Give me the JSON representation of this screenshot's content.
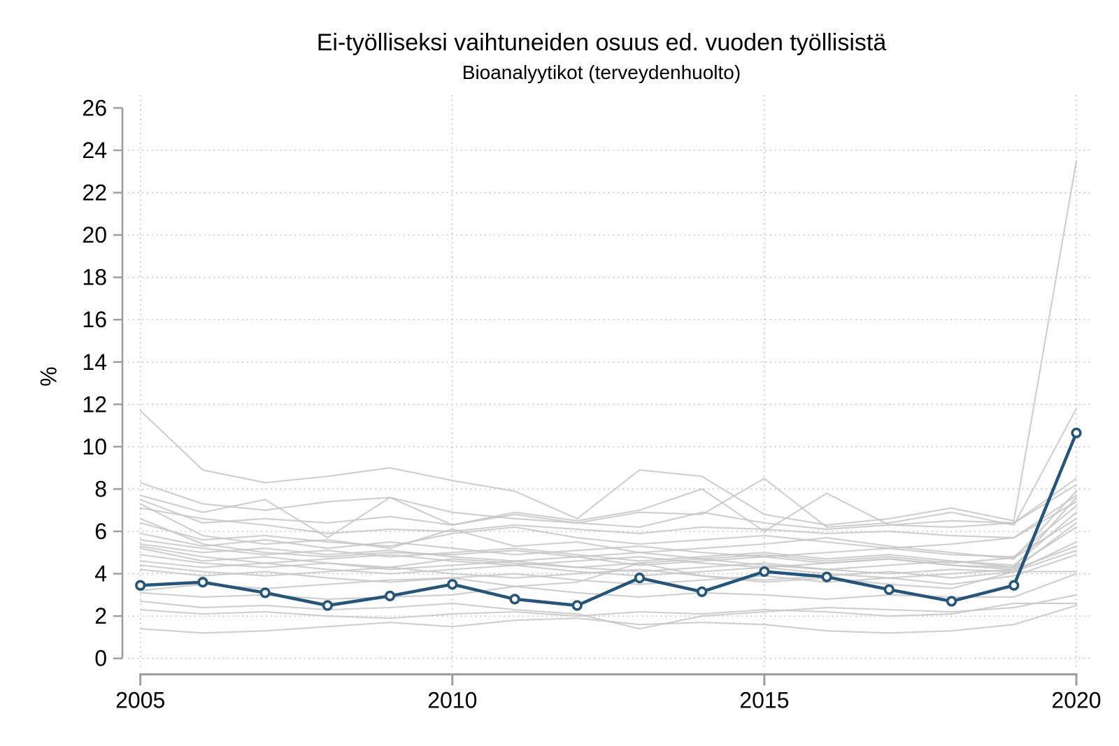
{
  "header": {
    "title": "Ei-työlliseksi vaihtuneiden osuus ed. vuoden työllisistä",
    "subtitle": "Bioanalyytikot (terveydenhuolto)"
  },
  "chart_data": {
    "type": "line",
    "title": "Ei-työlliseksi vaihtuneiden osuus ed. vuoden työllisistä",
    "subtitle": "Bioanalyytikot (terveydenhuolto)",
    "ylabel": "%",
    "xlabel": "",
    "x": [
      2005,
      2006,
      2007,
      2008,
      2009,
      2010,
      2011,
      2012,
      2013,
      2014,
      2015,
      2016,
      2017,
      2018,
      2019,
      2020
    ],
    "x_ticks": [
      2005,
      2010,
      2015,
      2020
    ],
    "y_ticks": [
      0,
      2,
      4,
      6,
      8,
      10,
      12,
      14,
      16,
      18,
      20,
      22,
      24,
      26
    ],
    "y_gridlines": [
      0,
      2,
      4,
      6,
      8,
      10,
      12,
      14,
      16,
      18,
      20,
      22,
      24
    ],
    "ylim": [
      0,
      26
    ],
    "grid": "dotted, at labeled ticks, both directions",
    "legend": "none",
    "highlight": {
      "label": "Bioanalyytikot (terveydenhuolto)",
      "color": "#25567a",
      "marker": "hollow-circle",
      "values": [
        3.45,
        3.6,
        3.1,
        2.5,
        2.95,
        3.5,
        2.8,
        2.5,
        3.8,
        3.15,
        4.1,
        3.85,
        3.25,
        2.7,
        3.45,
        10.65
      ]
    },
    "background": {
      "color": "#c4c4c4",
      "description": "other occupations, unlabeled gray lines",
      "series": [
        [
          11.7,
          8.9,
          8.3,
          8.6,
          9.0,
          8.4,
          7.9,
          6.6,
          8.9,
          8.6,
          6.8,
          6.3,
          6.6,
          7.1,
          6.5,
          23.5
        ],
        [
          8.3,
          7.3,
          7.0,
          7.4,
          7.6,
          6.9,
          6.6,
          6.4,
          6.9,
          6.8,
          8.5,
          6.2,
          6.4,
          6.9,
          6.3,
          11.8
        ],
        [
          7.7,
          6.9,
          7.5,
          5.7,
          7.6,
          6.3,
          6.9,
          6.5,
          7.0,
          8.0,
          6.0,
          7.8,
          6.3,
          6.5,
          6.4,
          8.5
        ],
        [
          7.5,
          6.4,
          6.6,
          6.4,
          6.7,
          6.3,
          6.8,
          6.4,
          6.2,
          6.9,
          6.4,
          6.1,
          6.3,
          6.2,
          6.4,
          8.2
        ],
        [
          7.3,
          5.8,
          5.4,
          5.6,
          5.2,
          6.1,
          5.3,
          5.5,
          5.0,
          5.2,
          5.4,
          5.7,
          5.3,
          5.0,
          4.7,
          7.9
        ],
        [
          7.1,
          6.6,
          6.3,
          5.9,
          6.1,
          6.0,
          6.3,
          6.1,
          5.9,
          6.2,
          6.1,
          5.9,
          6.0,
          5.8,
          5.7,
          7.7
        ],
        [
          6.6,
          5.4,
          5.0,
          4.8,
          5.0,
          4.9,
          5.1,
          4.8,
          4.4,
          4.6,
          4.8,
          4.5,
          4.7,
          4.4,
          4.3,
          7.6
        ],
        [
          6.4,
          5.6,
          5.8,
          5.5,
          5.3,
          5.9,
          6.2,
          5.7,
          5.4,
          5.6,
          5.8,
          5.5,
          5.2,
          5.4,
          5.7,
          7.4
        ],
        [
          5.9,
          5.3,
          5.6,
          5.2,
          5.5,
          5.2,
          4.9,
          5.1,
          5.3,
          5.0,
          4.8,
          5.0,
          5.2,
          4.9,
          4.8,
          7.2
        ],
        [
          5.6,
          5.2,
          4.9,
          5.1,
          4.8,
          5.0,
          5.2,
          4.9,
          4.6,
          4.8,
          5.0,
          4.7,
          4.9,
          4.6,
          4.4,
          6.9
        ],
        [
          5.4,
          5.0,
          5.2,
          4.9,
          5.1,
          4.8,
          4.6,
          4.8,
          5.0,
          4.7,
          4.9,
          4.6,
          4.8,
          4.5,
          4.75,
          6.6
        ],
        [
          5.3,
          4.8,
          4.5,
          4.7,
          4.9,
          4.6,
          4.4,
          4.6,
          4.8,
          4.5,
          4.3,
          4.5,
          4.7,
          4.4,
          4.2,
          6.4
        ],
        [
          5.2,
          4.6,
          4.8,
          4.5,
          4.3,
          4.7,
          4.5,
          4.3,
          4.5,
          4.7,
          4.4,
          4.2,
          4.4,
          4.6,
          4.3,
          6.2
        ],
        [
          4.9,
          4.5,
          4.3,
          4.5,
          4.2,
          4.4,
          4.6,
          4.3,
          4.1,
          4.3,
          4.5,
          4.2,
          4.0,
          4.2,
          4.1,
          5.5
        ],
        [
          4.6,
          4.3,
          4.5,
          4.2,
          4.0,
          4.2,
          4.4,
          4.1,
          3.9,
          4.1,
          4.3,
          4.0,
          3.8,
          4.0,
          4.2,
          5.3
        ],
        [
          4.4,
          4.1,
          3.9,
          4.1,
          4.3,
          4.0,
          3.8,
          4.0,
          4.2,
          3.9,
          3.7,
          3.9,
          4.1,
          3.8,
          4.1,
          5.1
        ],
        [
          4.2,
          3.9,
          4.1,
          3.8,
          3.6,
          3.8,
          4.0,
          3.7,
          3.5,
          3.7,
          3.9,
          3.6,
          3.8,
          3.5,
          3.9,
          4.9
        ],
        [
          3.2,
          3.5,
          3.3,
          3.5,
          3.7,
          3.8,
          3.4,
          3.6,
          4.5,
          3.9,
          3.6,
          3.8,
          3.5,
          3.3,
          4.1,
          4.1
        ],
        [
          3.1,
          2.9,
          3.0,
          2.8,
          2.9,
          3.0,
          3.4,
          3.1,
          2.9,
          3.1,
          3.0,
          2.8,
          3.0,
          2.9,
          2.9,
          4.0
        ],
        [
          2.7,
          2.4,
          2.5,
          2.3,
          2.4,
          2.6,
          2.3,
          2.1,
          1.4,
          2.0,
          2.2,
          2.4,
          2.3,
          2.2,
          2.4,
          3.0
        ],
        [
          2.3,
          2.1,
          2.2,
          2.0,
          1.9,
          2.1,
          2.2,
          2.0,
          2.2,
          2.1,
          2.3,
          2.2,
          2.0,
          2.1,
          2.6,
          2.6
        ],
        [
          1.4,
          1.2,
          1.3,
          1.5,
          1.7,
          1.5,
          1.8,
          1.9,
          1.6,
          1.7,
          1.6,
          1.3,
          1.2,
          1.3,
          1.6,
          2.5
        ]
      ]
    }
  },
  "style": {
    "axis_color": "#9d9d9d",
    "grid_color": "#b5b5b5",
    "text_color": "#000000",
    "background_line_color": "#c4c4c4",
    "highlight_color": "#25567a"
  }
}
